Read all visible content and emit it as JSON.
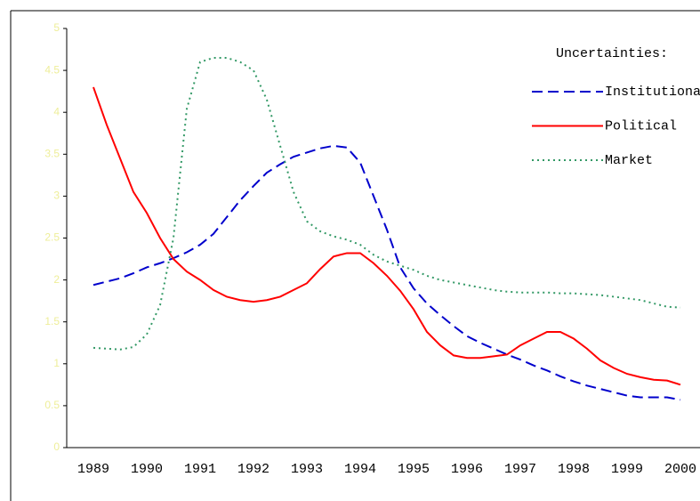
{
  "chart_data": {
    "type": "line",
    "legend_title": "Uncertainties:",
    "legend_position": "top-right",
    "x": [
      1989,
      1989.25,
      1989.5,
      1989.75,
      1990,
      1990.25,
      1990.5,
      1990.75,
      1991,
      1991.25,
      1991.5,
      1991.75,
      1992,
      1992.25,
      1992.5,
      1992.75,
      1993,
      1993.25,
      1993.5,
      1993.75,
      1994,
      1994.25,
      1994.5,
      1994.75,
      1995,
      1995.25,
      1995.5,
      1995.75,
      1996,
      1996.25,
      1996.5,
      1996.75,
      1997,
      1997.25,
      1997.5,
      1997.75,
      1998,
      1998.25,
      1998.5,
      1998.75,
      1999,
      1999.25,
      1999.5,
      1999.75,
      2000
    ],
    "series": [
      {
        "name": "Institutional",
        "color": "#0000cc",
        "dash": "dashed",
        "values": [
          1.94,
          1.98,
          2.02,
          2.08,
          2.15,
          2.2,
          2.26,
          2.33,
          2.42,
          2.55,
          2.75,
          2.95,
          3.12,
          3.28,
          3.38,
          3.47,
          3.52,
          3.57,
          3.6,
          3.58,
          3.4,
          3.0,
          2.6,
          2.15,
          1.9,
          1.72,
          1.58,
          1.45,
          1.33,
          1.25,
          1.18,
          1.11,
          1.05,
          0.98,
          0.92,
          0.85,
          0.79,
          0.74,
          0.7,
          0.66,
          0.62,
          0.6,
          0.6,
          0.6,
          0.57
        ]
      },
      {
        "name": "Political",
        "color": "#ff0000",
        "dash": "solid",
        "values": [
          4.3,
          3.85,
          3.45,
          3.05,
          2.8,
          2.5,
          2.25,
          2.1,
          2.0,
          1.88,
          1.8,
          1.76,
          1.74,
          1.76,
          1.8,
          1.88,
          1.96,
          2.13,
          2.28,
          2.32,
          2.32,
          2.2,
          2.05,
          1.87,
          1.65,
          1.38,
          1.22,
          1.1,
          1.07,
          1.07,
          1.09,
          1.11,
          1.22,
          1.3,
          1.38,
          1.38,
          1.3,
          1.18,
          1.04,
          0.95,
          0.88,
          0.84,
          0.81,
          0.8,
          0.75
        ]
      },
      {
        "name": "Market",
        "color": "#339966",
        "dash": "dotted",
        "values": [
          1.19,
          1.18,
          1.17,
          1.2,
          1.35,
          1.7,
          2.5,
          4.04,
          4.6,
          4.65,
          4.65,
          4.6,
          4.5,
          4.15,
          3.6,
          3.05,
          2.7,
          2.58,
          2.52,
          2.48,
          2.42,
          2.3,
          2.22,
          2.17,
          2.12,
          2.05,
          2.0,
          1.97,
          1.94,
          1.91,
          1.88,
          1.86,
          1.85,
          1.85,
          1.85,
          1.84,
          1.84,
          1.83,
          1.82,
          1.8,
          1.78,
          1.76,
          1.72,
          1.68,
          1.67
        ]
      }
    ],
    "xlim": [
      1988.5,
      2000.5
    ],
    "xticks": [
      1989,
      1990,
      1991,
      1992,
      1993,
      1994,
      1995,
      1996,
      1997,
      1998,
      1999,
      2000
    ],
    "ylim": [
      0,
      5
    ],
    "yticks": [
      0,
      0.5,
      1,
      1.5,
      2,
      2.5,
      3,
      3.5,
      4,
      4.5,
      5
    ],
    "ytick_color": "#eeee99",
    "grid": false
  }
}
